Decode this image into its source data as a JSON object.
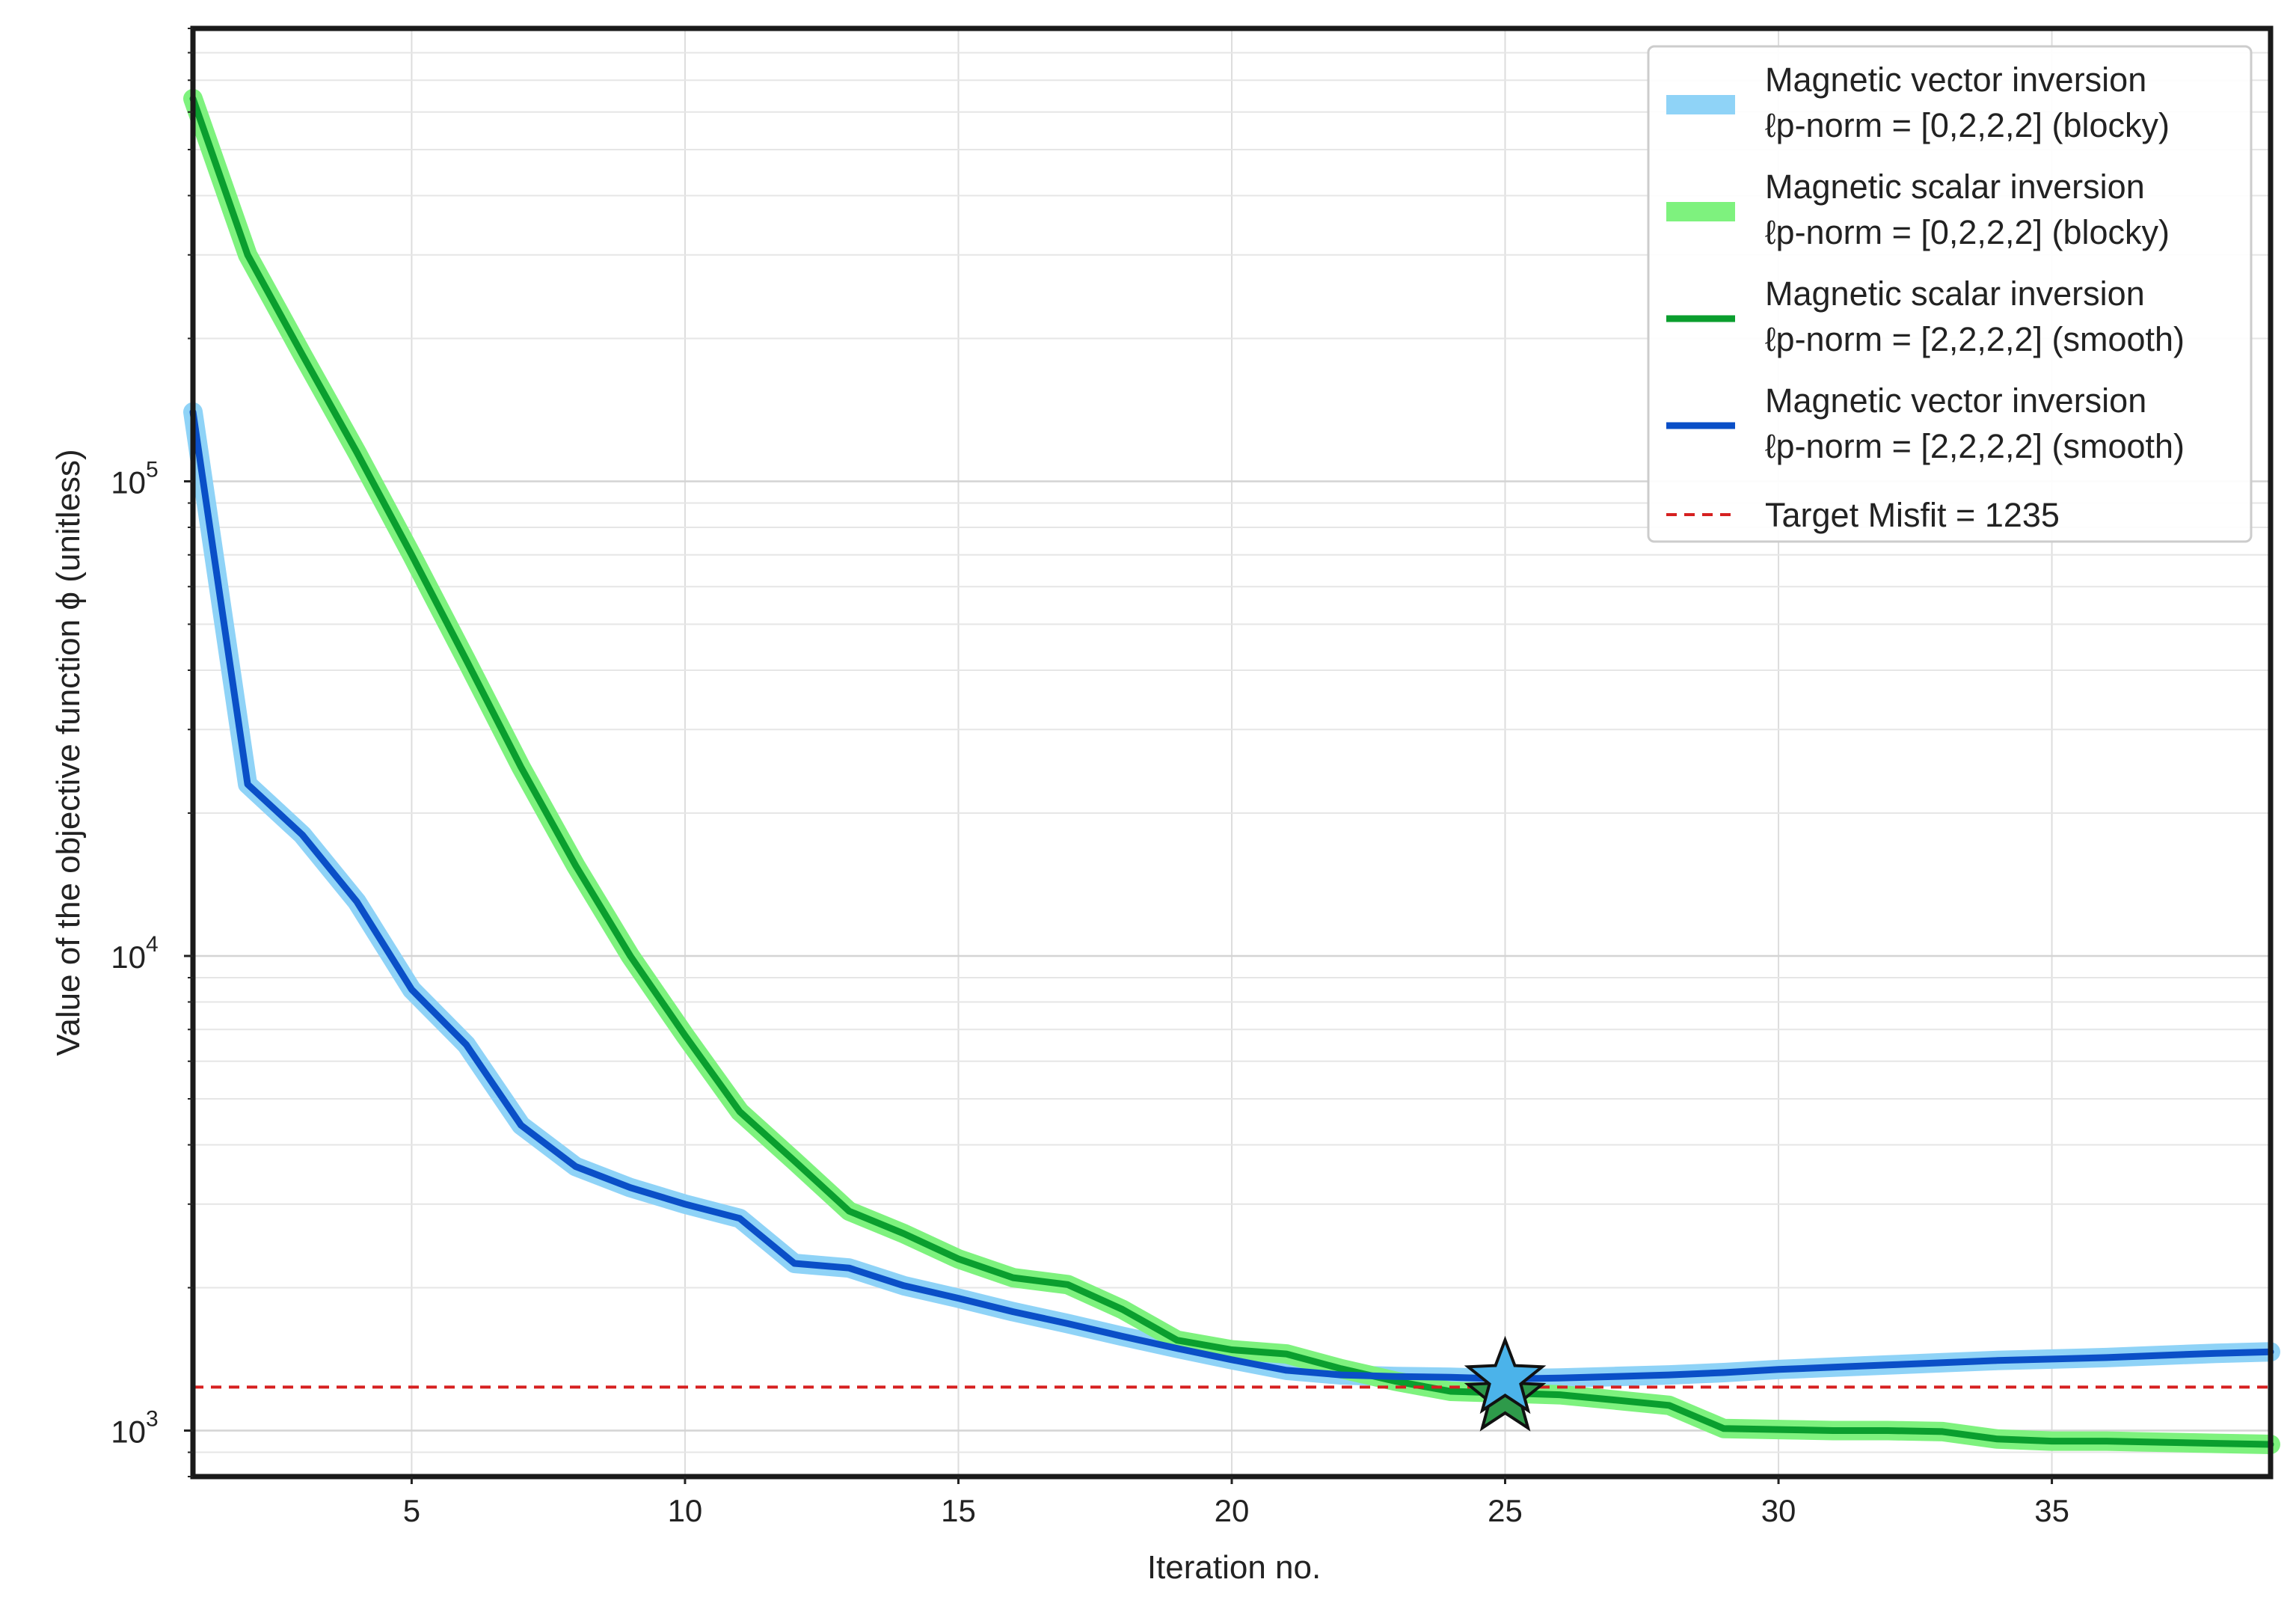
{
  "chart_data": {
    "type": "line",
    "xlabel": "Iteration no.",
    "ylabel": "Value of the objective function ϕ (unitless)",
    "y_scale": "log",
    "xlim": [
      1,
      39
    ],
    "ylim": [
      800,
      900000
    ],
    "x_ticks": [
      5,
      10,
      15,
      20,
      25,
      30,
      35
    ],
    "y_ticks": [
      {
        "value": 1000,
        "base": "10",
        "exp": "3"
      },
      {
        "value": 10000,
        "base": "10",
        "exp": "4"
      },
      {
        "value": 100000,
        "base": "10",
        "exp": "5"
      }
    ],
    "grid": true,
    "legend_position": "top-right",
    "series": [
      {
        "name_line1": "Magnetic vector inversion",
        "name_line2": "ℓp-norm = [0,2,2,2] (blocky)",
        "color": "#8fd3f7",
        "style": "wide",
        "key": "mvi_blocky",
        "x": [
          1,
          2,
          3,
          4,
          5,
          6,
          7,
          8,
          9,
          10,
          11,
          12,
          13,
          14,
          15,
          16,
          17,
          18,
          19,
          20,
          21,
          22,
          23,
          24,
          25,
          26,
          27,
          28,
          29,
          30,
          31,
          32,
          33,
          34,
          35,
          36,
          37,
          38,
          39
        ],
        "y": [
          140000,
          23000,
          18000,
          13000,
          8500,
          6500,
          4400,
          3600,
          3250,
          3000,
          2800,
          2250,
          2200,
          2020,
          1900,
          1780,
          1680,
          1580,
          1490,
          1410,
          1340,
          1310,
          1300,
          1295,
          1285,
          1290,
          1300,
          1310,
          1325,
          1345,
          1360,
          1375,
          1390,
          1405,
          1415,
          1425,
          1440,
          1455,
          1465
        ]
      },
      {
        "name_line1": "Magnetic scalar inversion",
        "name_line2": "ℓp-norm = [0,2,2,2] (blocky)",
        "color": "#7ef27e",
        "style": "wide",
        "key": "msi_blocky",
        "x": [
          1,
          2,
          3,
          4,
          5,
          6,
          7,
          8,
          9,
          10,
          11,
          12,
          13,
          14,
          15,
          16,
          17,
          18,
          19,
          20,
          21,
          22,
          23,
          24,
          25,
          26,
          27,
          28,
          29,
          30,
          31,
          32,
          33,
          34,
          35,
          36,
          37,
          38,
          39
        ],
        "y": [
          640000,
          300000,
          185000,
          115000,
          70000,
          42000,
          25000,
          15500,
          10000,
          6800,
          4700,
          3700,
          2900,
          2600,
          2300,
          2100,
          2030,
          1800,
          1550,
          1480,
          1450,
          1350,
          1270,
          1210,
          1200,
          1190,
          1160,
          1130,
          1010,
          1005,
          1000,
          1000,
          995,
          960,
          950,
          950,
          945,
          940,
          935
        ]
      },
      {
        "name_line1": "Magnetic scalar inversion",
        "name_line2": "ℓp-norm = [2,2,2,2] (smooth)",
        "color": "#0a9e2e",
        "style": "thin",
        "key": "msi_smooth",
        "x": [
          1,
          2,
          3,
          4,
          5,
          6,
          7,
          8,
          9,
          10,
          11,
          12,
          13,
          14,
          15,
          16,
          17,
          18,
          19,
          20,
          21,
          22,
          23,
          24,
          25,
          26,
          27,
          28,
          29,
          30,
          31,
          32,
          33,
          34,
          35,
          36,
          37,
          38,
          39
        ],
        "y": [
          640000,
          300000,
          185000,
          115000,
          70000,
          42000,
          25000,
          15500,
          10000,
          6800,
          4700,
          3700,
          2900,
          2600,
          2300,
          2100,
          2030,
          1800,
          1550,
          1480,
          1450,
          1350,
          1270,
          1210,
          1200,
          1190,
          1160,
          1130,
          1010,
          1005,
          1000,
          1000,
          995,
          960,
          950,
          950,
          945,
          940,
          935
        ]
      },
      {
        "name_line1": "Magnetic vector inversion",
        "name_line2": "ℓp-norm = [2,2,2,2] (smooth)",
        "color": "#0a4fc7",
        "style": "thin",
        "key": "mvi_smooth",
        "x": [
          1,
          2,
          3,
          4,
          5,
          6,
          7,
          8,
          9,
          10,
          11,
          12,
          13,
          14,
          15,
          16,
          17,
          18,
          19,
          20,
          21,
          22,
          23,
          24,
          25,
          26,
          27,
          28,
          29,
          30,
          31,
          32,
          33,
          34,
          35,
          36,
          37,
          38,
          39
        ],
        "y": [
          140000,
          23000,
          18000,
          13000,
          8500,
          6500,
          4400,
          3600,
          3250,
          3000,
          2800,
          2250,
          2200,
          2020,
          1900,
          1780,
          1680,
          1580,
          1490,
          1410,
          1340,
          1310,
          1300,
          1295,
          1285,
          1290,
          1300,
          1310,
          1325,
          1345,
          1360,
          1375,
          1390,
          1405,
          1415,
          1425,
          1440,
          1455,
          1465
        ]
      }
    ],
    "target_line": {
      "label": "Target Misfit = 1235",
      "value": 1235,
      "color": "#d62020"
    },
    "markers": [
      {
        "x": 25,
        "y": 1180,
        "color": "#2e9a4a"
      },
      {
        "x": 25,
        "y": 1285,
        "color": "#4bb3ea"
      }
    ]
  }
}
